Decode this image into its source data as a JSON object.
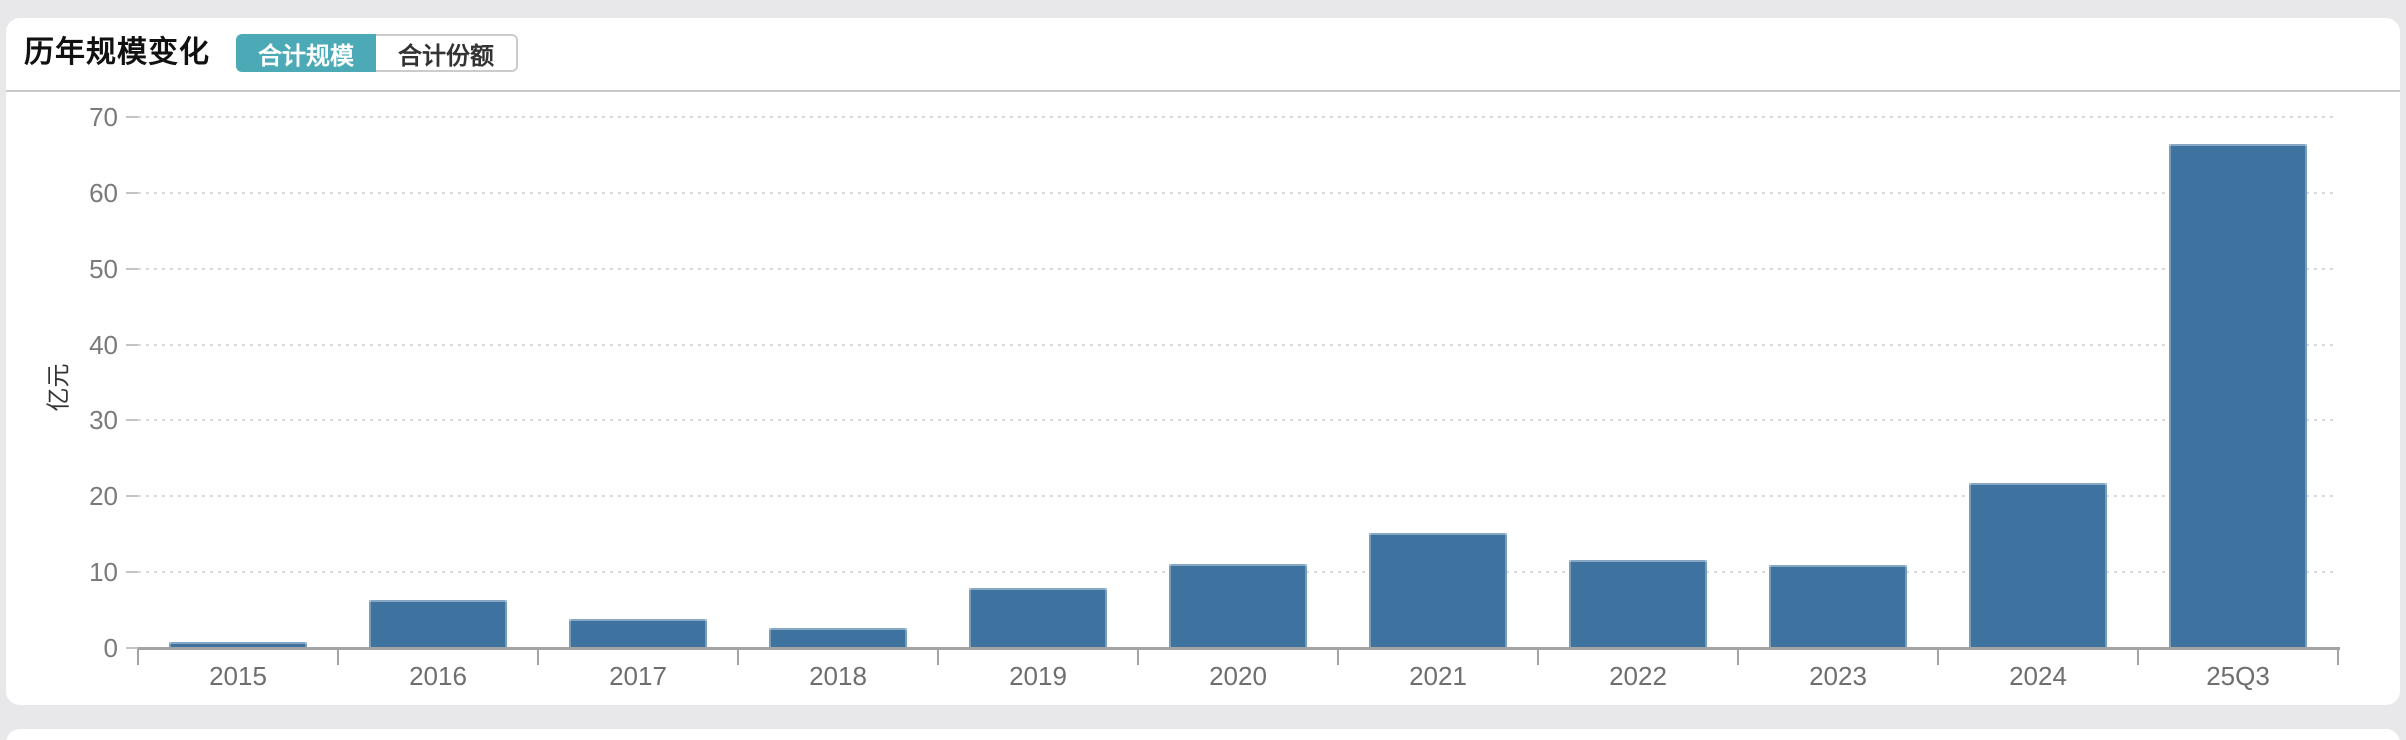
{
  "panel": {
    "title": "历年规模变化",
    "toggle": {
      "options": [
        {
          "label": "合计规模",
          "active": true
        },
        {
          "label": "合计份额",
          "active": false
        }
      ]
    }
  },
  "colors": {
    "bar": "#3e73a0",
    "accent_teal": "#4caab6",
    "page_background": "#e8e8ea",
    "axis_line": "#a3a3a3",
    "grid_dots": "#d9d9d9",
    "tick_label": "#757575"
  },
  "chart_data": {
    "type": "bar",
    "categories": [
      "2015",
      "2016",
      "2017",
      "2018",
      "2019",
      "2020",
      "2021",
      "2022",
      "2023",
      "2024",
      "25Q3"
    ],
    "values": [
      0.8,
      6.3,
      3.8,
      2.6,
      7.9,
      11.1,
      15.1,
      11.6,
      10.9,
      21.7,
      66.4
    ],
    "title": "历年规模变化",
    "xlabel": "",
    "ylabel": "亿元",
    "ylim": [
      0,
      70
    ],
    "ytick_step": 10,
    "grid": "horizontal-dotted",
    "legend": "none"
  }
}
